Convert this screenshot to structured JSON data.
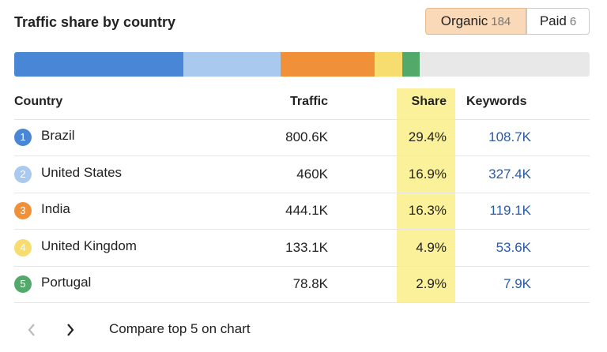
{
  "header": {
    "title": "Traffic share by country",
    "tabs": [
      {
        "label": "Organic",
        "count": "184"
      },
      {
        "label": "Paid",
        "count": "6"
      }
    ]
  },
  "table": {
    "columns": [
      "Country",
      "Traffic",
      "Share",
      "Keywords"
    ],
    "rows": [
      {
        "rank": "1",
        "country": "Brazil",
        "traffic": "800.6K",
        "share": {
          "value": 29.4,
          "label": "29.4%"
        },
        "keywords": "108.7K",
        "color": "#4a86d6"
      },
      {
        "rank": "2",
        "country": "United States",
        "traffic": "460K",
        "share": {
          "value": 16.9,
          "label": "16.9%"
        },
        "keywords": "327.4K",
        "color": "#a9c9ee"
      },
      {
        "rank": "3",
        "country": "India",
        "traffic": "444.1K",
        "share": {
          "value": 16.3,
          "label": "16.3%"
        },
        "keywords": "119.1K",
        "color": "#f0913a"
      },
      {
        "rank": "4",
        "country": "United Kingdom",
        "traffic": "133.1K",
        "share": {
          "value": 4.9,
          "label": "4.9%"
        },
        "keywords": "53.6K",
        "color": "#f7dc6f"
      },
      {
        "rank": "5",
        "country": "Portugal",
        "traffic": "78.8K",
        "share": {
          "value": 2.9,
          "label": "2.9%"
        },
        "keywords": "7.9K",
        "color": "#52a96a"
      }
    ]
  },
  "footer": {
    "link": "Compare top 5 on chart"
  }
}
